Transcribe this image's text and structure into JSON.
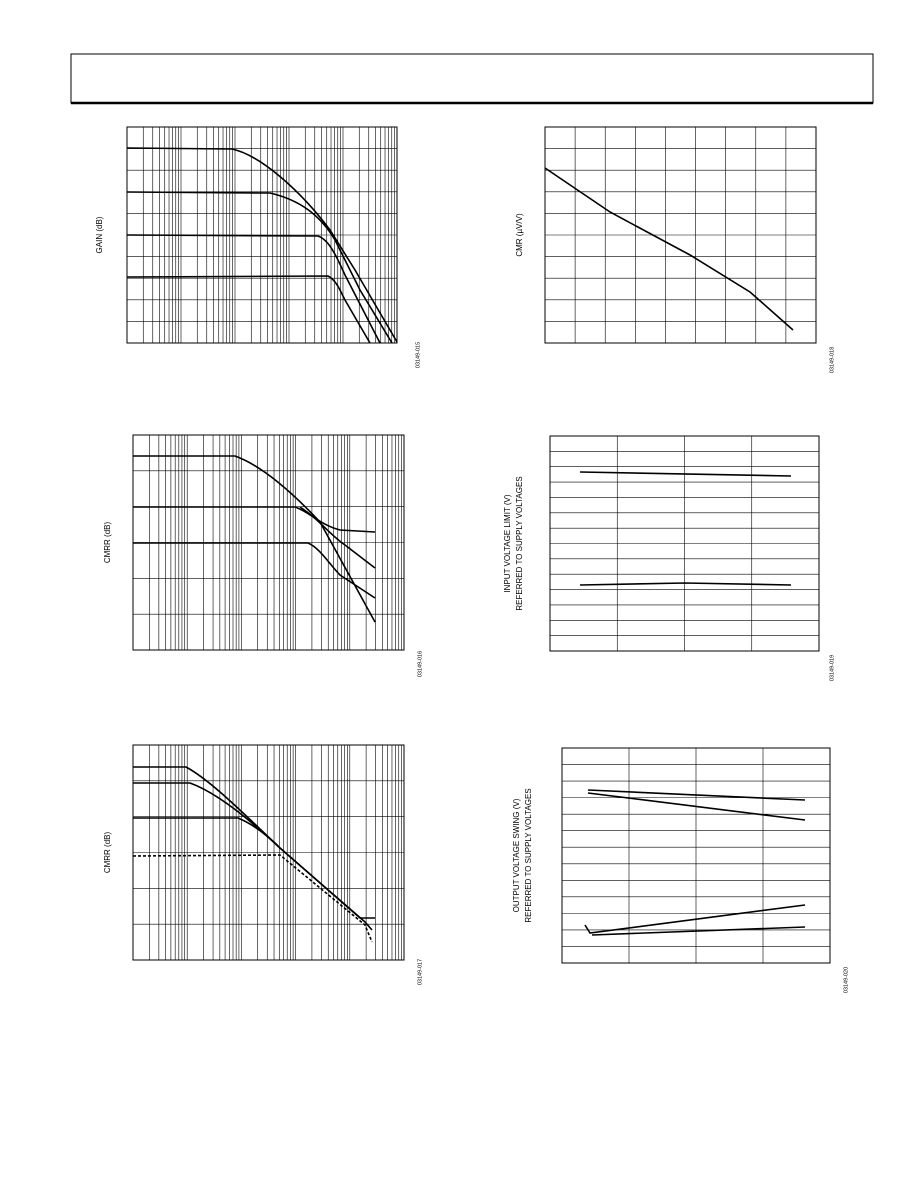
{
  "charts": [
    {
      "y_label": [
        "GAIN (dB)"
      ],
      "figure_code": "03149-015"
    },
    {
      "y_label": [
        "CMR (µV/V)"
      ],
      "figure_code": "03149-018"
    },
    {
      "y_label": [
        "CMRR (dB)"
      ],
      "figure_code": "03149-016"
    },
    {
      "y_label": [
        "INPUT VOLTAGE LIMIT (V)",
        "REFERRED TO SUPPLY VOLTAGES"
      ],
      "figure_code": "03149-019"
    },
    {
      "y_label": [
        "CMRR (dB)"
      ],
      "figure_code": "03149-017"
    },
    {
      "y_label": [
        "OUTPUT VOLTAGE SWING (V)",
        "REFERRED TO SUPPLY VOLTAGES"
      ],
      "figure_code": "03149-020"
    }
  ]
}
